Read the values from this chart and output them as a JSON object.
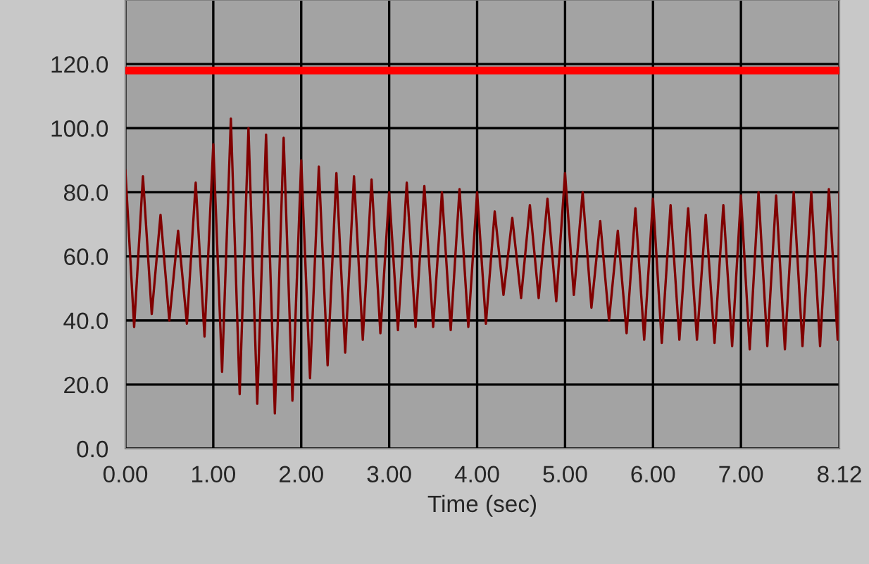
{
  "chart_data": {
    "type": "line",
    "xlabel": "Time (sec)",
    "x": [
      0.0,
      0.1,
      0.2,
      0.3,
      0.4,
      0.5,
      0.6,
      0.7,
      0.8,
      0.9,
      1.0,
      1.1,
      1.2,
      1.3,
      1.4,
      1.5,
      1.6,
      1.7,
      1.8,
      1.9,
      2.0,
      2.1,
      2.2,
      2.3,
      2.4,
      2.5,
      2.6,
      2.7,
      2.8,
      2.9,
      3.0,
      3.1,
      3.2,
      3.3,
      3.4,
      3.5,
      3.6,
      3.7,
      3.8,
      3.9,
      4.0,
      4.1,
      4.2,
      4.3,
      4.4,
      4.5,
      4.6,
      4.7,
      4.8,
      4.9,
      5.0,
      5.1,
      5.2,
      5.3,
      5.4,
      5.5,
      5.6,
      5.7,
      5.8,
      5.9,
      6.0,
      6.1,
      6.2,
      6.3,
      6.4,
      6.5,
      6.6,
      6.7,
      6.8,
      6.9,
      7.0,
      7.1,
      7.2,
      7.3,
      7.4,
      7.5,
      7.6,
      7.7,
      7.8,
      7.9,
      8.0,
      8.1,
      8.12
    ],
    "series": [
      {
        "color": "#800000",
        "values": [
          87,
          38,
          85,
          42,
          73,
          40,
          68,
          39,
          83,
          35,
          95,
          24,
          103,
          17,
          100,
          14,
          98,
          11,
          97,
          15,
          90,
          22,
          88,
          26,
          86,
          30,
          85,
          34,
          84,
          36,
          80,
          37,
          83,
          38,
          82,
          38,
          80,
          37,
          81,
          38,
          80,
          39,
          74,
          48,
          72,
          47,
          76,
          47,
          78,
          46,
          86,
          48,
          80,
          44,
          71,
          40,
          68,
          36,
          75,
          34,
          78,
          33,
          76,
          34,
          75,
          34,
          73,
          33,
          76,
          32,
          79,
          31,
          80,
          32,
          79,
          31,
          80,
          32,
          80,
          32,
          81,
          34,
          80
        ]
      }
    ],
    "xlim": [
      0,
      8.12
    ],
    "xticks": [
      {
        "value": 0,
        "label": "0.00"
      },
      {
        "value": 1,
        "label": "1.00"
      },
      {
        "value": 2,
        "label": "2.00"
      },
      {
        "value": 3,
        "label": "3.00"
      },
      {
        "value": 4,
        "label": "4.00"
      },
      {
        "value": 5,
        "label": "5.00"
      },
      {
        "value": 6,
        "label": "6.00"
      },
      {
        "value": 7,
        "label": "7.00"
      },
      {
        "value": 8.12,
        "label": "8.12"
      }
    ],
    "ylim": [
      0,
      140
    ],
    "yticks": [
      {
        "value": 0,
        "label": "0.0"
      },
      {
        "value": 20,
        "label": "20.0"
      },
      {
        "value": 40,
        "label": "40.0"
      },
      {
        "value": 60,
        "label": "60.0"
      },
      {
        "value": 80,
        "label": "80.0"
      },
      {
        "value": 100,
        "label": "100.0"
      },
      {
        "value": 120,
        "label": "120.0"
      }
    ],
    "ref_lines": [
      {
        "axis": "y",
        "value": 118,
        "color": "#ff0000"
      }
    ],
    "grid": true
  }
}
